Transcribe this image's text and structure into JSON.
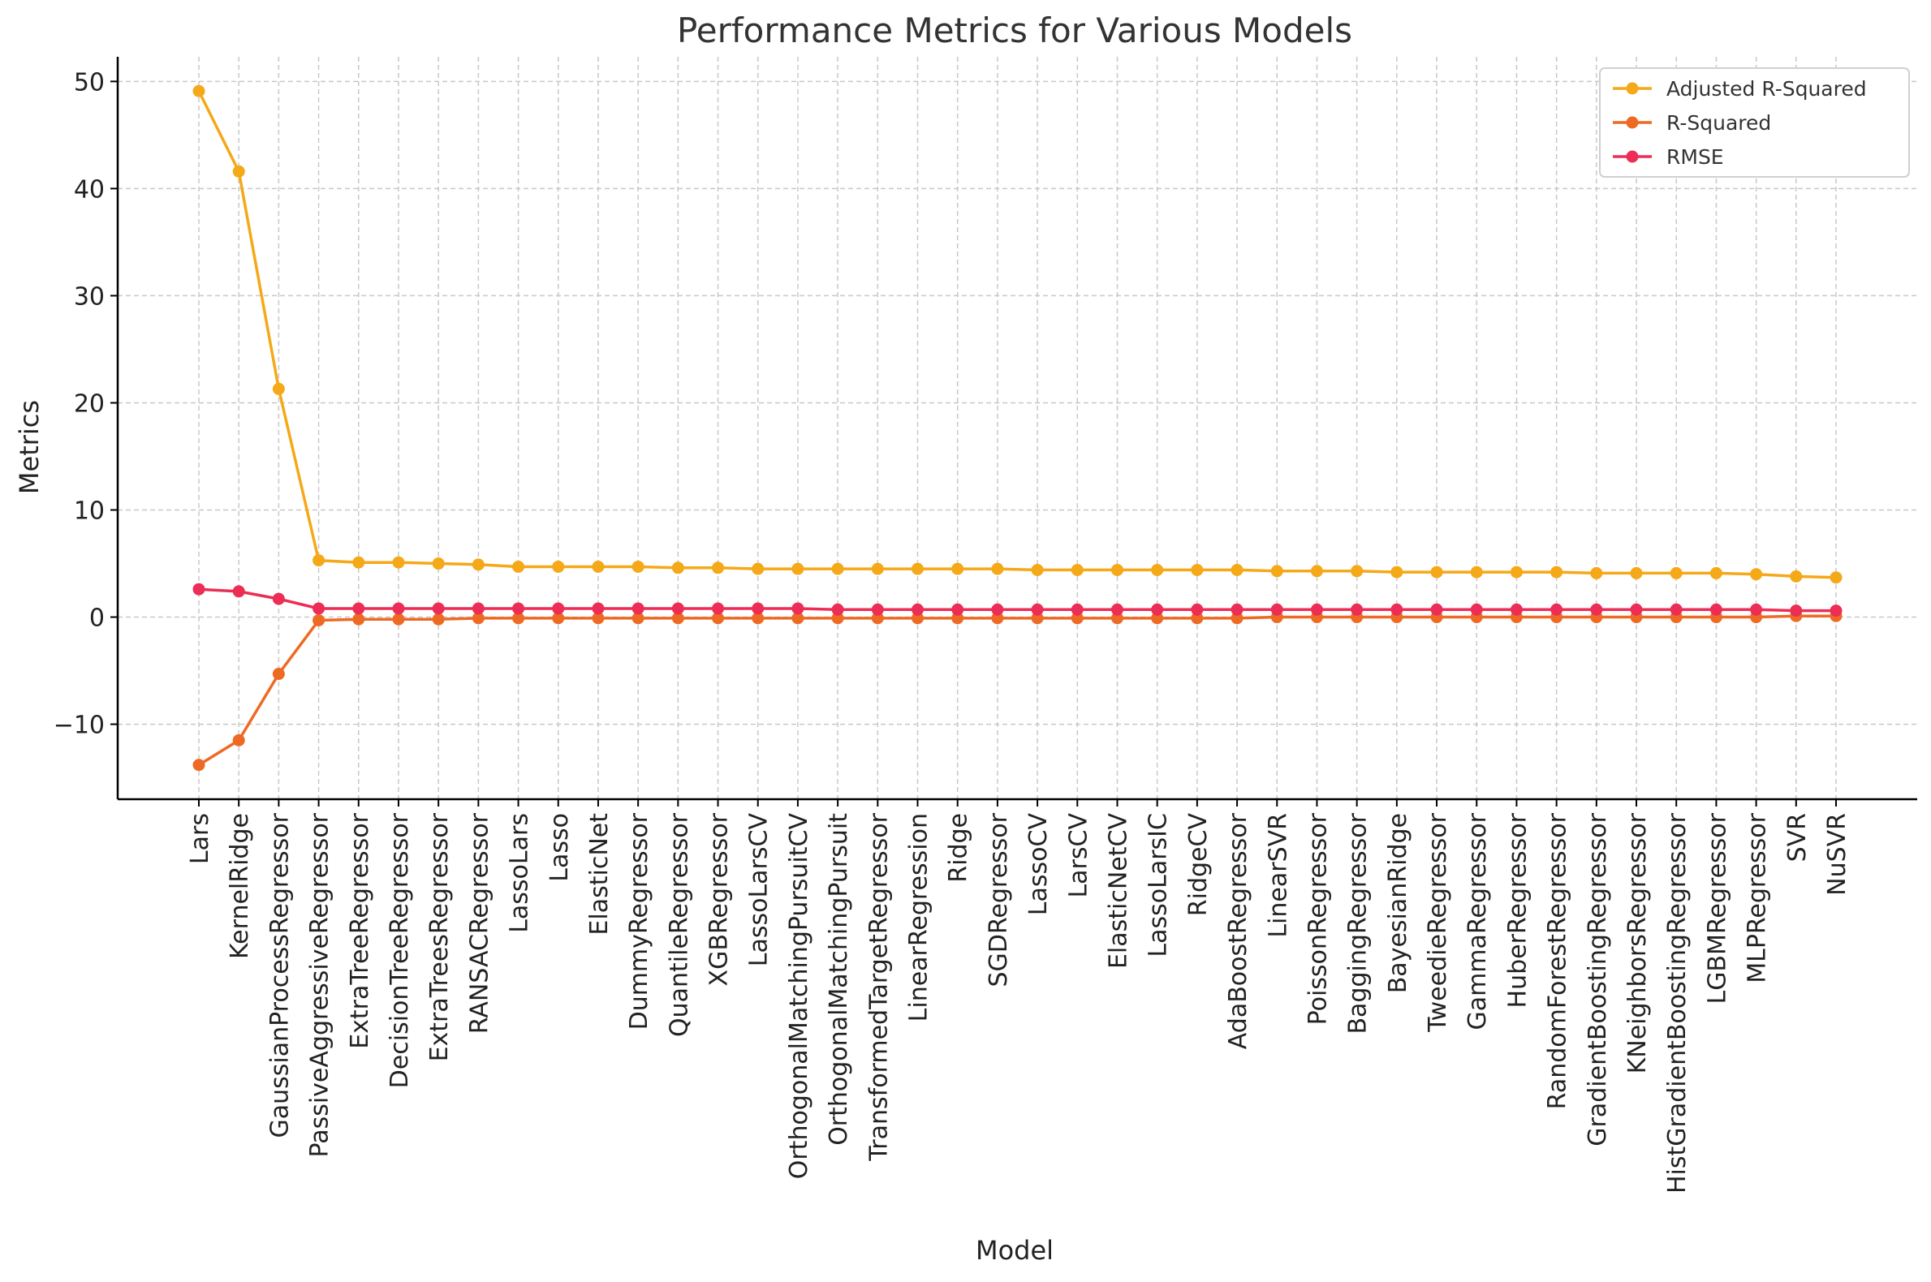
{
  "chart_data": {
    "type": "line",
    "title": "Performance Metrics for Various Models",
    "xlabel": "Model",
    "ylabel": "Metrics",
    "ylim": [
      -17.0,
      52.3
    ],
    "yticks": [
      -10,
      0,
      10,
      20,
      30,
      40,
      50
    ],
    "ytick_labels": [
      "−10",
      "0",
      "10",
      "20",
      "30",
      "40",
      "50"
    ],
    "grid": true,
    "legend_position": "top-right",
    "categories": [
      "Lars",
      "KernelRidge",
      "GaussianProcessRegressor",
      "PassiveAggressiveRegressor",
      "ExtraTreeRegressor",
      "DecisionTreeRegressor",
      "ExtraTreesRegressor",
      "RANSACRegressor",
      "LassoLars",
      "Lasso",
      "ElasticNet",
      "DummyRegressor",
      "QuantileRegressor",
      "XGBRegressor",
      "LassoLarsCV",
      "OrthogonalMatchingPursuitCV",
      "OrthogonalMatchingPursuit",
      "TransformedTargetRegressor",
      "LinearRegression",
      "Ridge",
      "SGDRegressor",
      "LassoCV",
      "LarsCV",
      "ElasticNetCV",
      "LassoLarsIC",
      "RidgeCV",
      "AdaBoostRegressor",
      "LinearSVR",
      "PoissonRegressor",
      "BaggingRegressor",
      "BayesianRidge",
      "TweedieRegressor",
      "GammaRegressor",
      "HuberRegressor",
      "RandomForestRegressor",
      "GradientBoostingRegressor",
      "KNeighborsRegressor",
      "HistGradientBoostingRegressor",
      "LGBMRegressor",
      "MLPRegressor",
      "SVR",
      "NuSVR"
    ],
    "series": [
      {
        "name": "Adjusted R-Squared",
        "color": "#f5a818",
        "values": [
          49.1,
          41.6,
          21.3,
          5.3,
          5.1,
          5.1,
          5.0,
          4.9,
          4.7,
          4.7,
          4.7,
          4.7,
          4.6,
          4.6,
          4.5,
          4.5,
          4.5,
          4.5,
          4.5,
          4.5,
          4.5,
          4.4,
          4.4,
          4.4,
          4.4,
          4.4,
          4.4,
          4.3,
          4.3,
          4.3,
          4.2,
          4.2,
          4.2,
          4.2,
          4.2,
          4.1,
          4.1,
          4.1,
          4.1,
          4.0,
          3.8,
          3.7
        ]
      },
      {
        "name": "R-Squared",
        "color": "#ee6a24",
        "values": [
          -13.8,
          -11.5,
          -5.3,
          -0.3,
          -0.2,
          -0.2,
          -0.2,
          -0.1,
          -0.1,
          -0.1,
          -0.1,
          -0.1,
          -0.1,
          -0.1,
          -0.1,
          -0.1,
          -0.1,
          -0.1,
          -0.1,
          -0.1,
          -0.1,
          -0.1,
          -0.1,
          -0.1,
          -0.1,
          -0.1,
          -0.1,
          0.0,
          0.0,
          0.0,
          0.0,
          0.0,
          0.0,
          0.0,
          0.0,
          0.0,
          0.0,
          0.0,
          0.0,
          0.0,
          0.1,
          0.1
        ]
      },
      {
        "name": "RMSE",
        "color": "#ec2d55",
        "values": [
          2.6,
          2.4,
          1.7,
          0.8,
          0.8,
          0.8,
          0.8,
          0.8,
          0.8,
          0.8,
          0.8,
          0.8,
          0.8,
          0.8,
          0.8,
          0.8,
          0.7,
          0.7,
          0.7,
          0.7,
          0.7,
          0.7,
          0.7,
          0.7,
          0.7,
          0.7,
          0.7,
          0.7,
          0.7,
          0.7,
          0.7,
          0.7,
          0.7,
          0.7,
          0.7,
          0.7,
          0.7,
          0.7,
          0.7,
          0.7,
          0.6,
          0.6
        ]
      }
    ]
  }
}
